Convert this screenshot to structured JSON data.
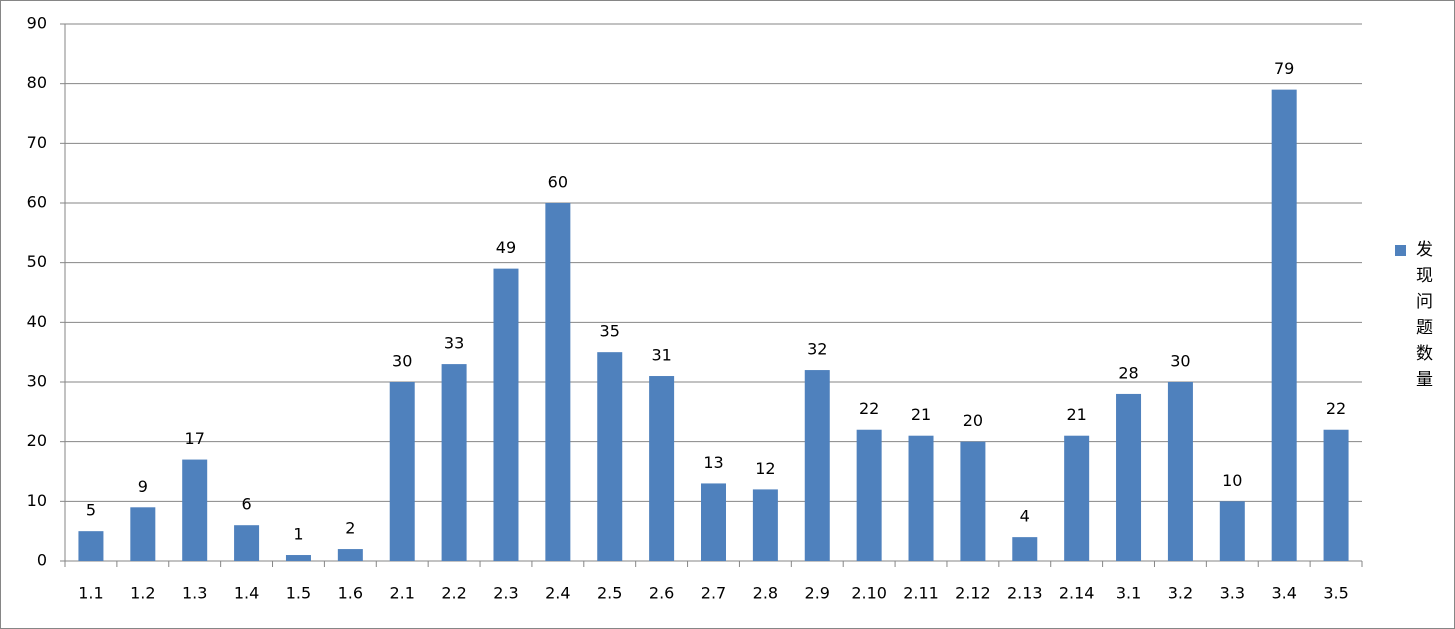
{
  "chart_data": {
    "type": "bar",
    "categories": [
      "1.1",
      "1.2",
      "1.3",
      "1.4",
      "1.5",
      "1.6",
      "2.1",
      "2.2",
      "2.3",
      "2.4",
      "2.5",
      "2.6",
      "2.7",
      "2.8",
      "2.9",
      "2.10",
      "2.11",
      "2.12",
      "2.13",
      "2.14",
      "3.1",
      "3.2",
      "3.3",
      "3.4",
      "3.5"
    ],
    "series": [
      {
        "name": "发现问题数量",
        "color": "#4f81bd",
        "values": [
          5,
          9,
          17,
          6,
          1,
          2,
          30,
          33,
          49,
          60,
          35,
          31,
          13,
          12,
          32,
          22,
          21,
          20,
          4,
          21,
          28,
          30,
          10,
          79,
          22
        ]
      }
    ],
    "ylim": [
      0,
      90
    ],
    "yticks": [
      0,
      10,
      20,
      30,
      40,
      50,
      60,
      70,
      80,
      90
    ],
    "grid": true,
    "legend": "right"
  }
}
